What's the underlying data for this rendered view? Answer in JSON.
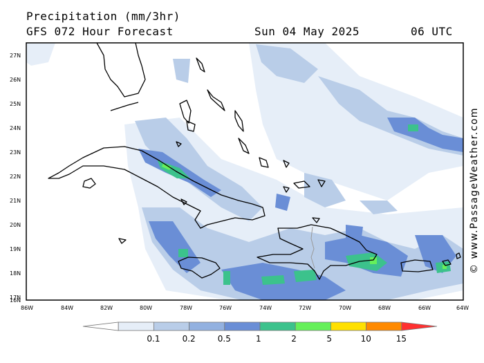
{
  "header": {
    "title": "Precipitation (mm/3hr)",
    "subtitle": "GFS 072 Hour Forecast",
    "date": "Sun 04 May 2025",
    "time": "06 UTC"
  },
  "credit": "© www.PassageWeather.com",
  "axes": {
    "lat_labels": [
      "27N",
      "26N",
      "25N",
      "24N",
      "23N",
      "22N",
      "21N",
      "20N",
      "19N",
      "18N",
      "17N",
      "16N"
    ],
    "lon_labels": [
      "86W",
      "84W",
      "82W",
      "80W",
      "78W",
      "76W",
      "74W",
      "72W",
      "70W",
      "68W",
      "66W",
      "64W"
    ]
  },
  "legend": {
    "labels": [
      "0.1",
      "0.2",
      "0.5",
      "1",
      "2",
      "5",
      "10",
      "15"
    ],
    "colors": [
      "#ffffff",
      "#e6eef8",
      "#b9cde8",
      "#93b1e0",
      "#6a8ed6",
      "#3cc28c",
      "#66f05a",
      "#ffe000",
      "#ff8a00",
      "#ff3030"
    ]
  },
  "colors": {
    "precip_light": "#e6eef8",
    "precip_low": "#b9cde8",
    "precip_mid": "#6a8ed6",
    "precip_high": "#3cc28c",
    "precip_max": "#66f05a"
  }
}
